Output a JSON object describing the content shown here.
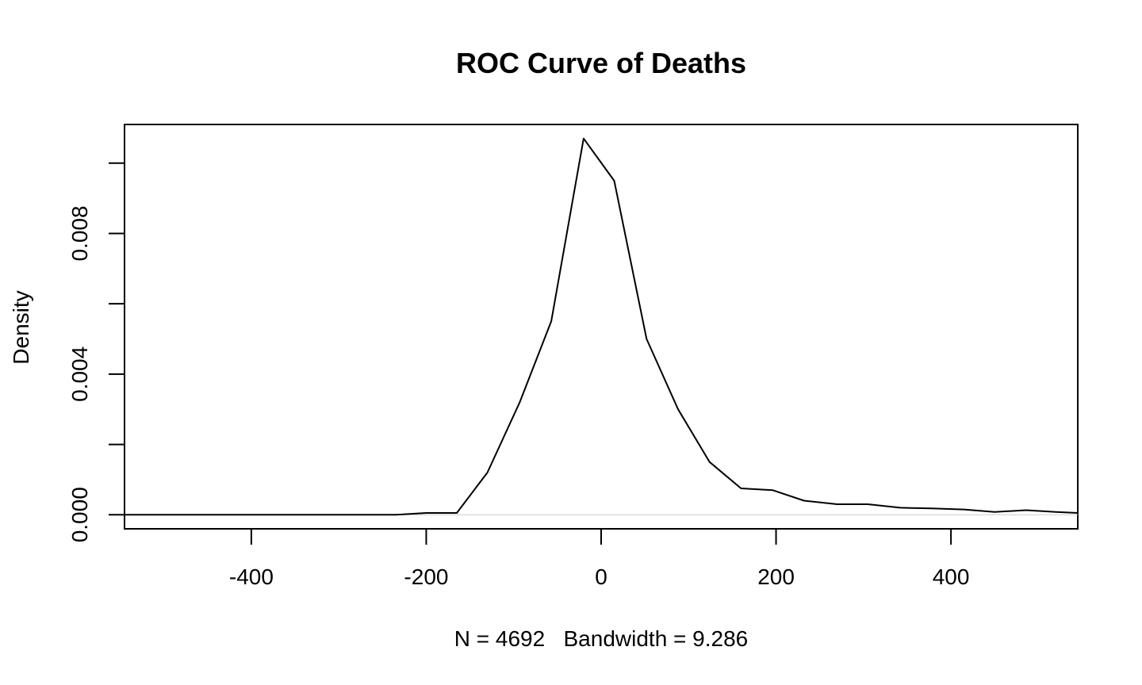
{
  "chart_data": {
    "type": "line",
    "title": "ROC Curve of Deaths",
    "xlabel": "N = 4692   Bandwidth = 9.286",
    "ylabel": "Density",
    "xlim": [
      -545,
      545
    ],
    "ylim": [
      -0.0004,
      0.0111
    ],
    "x_ticks": [
      -400,
      -200,
      0,
      200,
      400
    ],
    "x_tick_labels": [
      "-400",
      "-200",
      "0",
      "200",
      "400"
    ],
    "y_ticks": [
      0.0,
      0.002,
      0.004,
      0.006,
      0.008,
      0.01
    ],
    "y_tick_labels": [
      "0.000",
      "",
      "0.004",
      "",
      "0.008",
      ""
    ],
    "grid": false,
    "series": [
      {
        "x": [
          -545,
          -490,
          -420,
          -380,
          -310,
          -272,
          -235,
          -200,
          -165,
          -130,
          -93,
          -57,
          -20,
          15,
          52,
          88,
          124,
          160,
          196,
          232,
          270,
          305,
          342,
          378,
          415,
          450,
          486,
          520,
          545
        ],
        "y": [
          0.0,
          0.0,
          0.0,
          0.0,
          0.0,
          0.0,
          0.0,
          5e-05,
          5e-05,
          0.0012,
          0.0032,
          0.0055,
          0.0107,
          0.0095,
          0.005,
          0.003,
          0.0015,
          0.00075,
          0.0007,
          0.0004,
          0.0003,
          0.0003,
          0.0002,
          0.00018,
          0.00015,
          8e-05,
          0.00013,
          8e-05,
          5e-05
        ]
      }
    ]
  }
}
